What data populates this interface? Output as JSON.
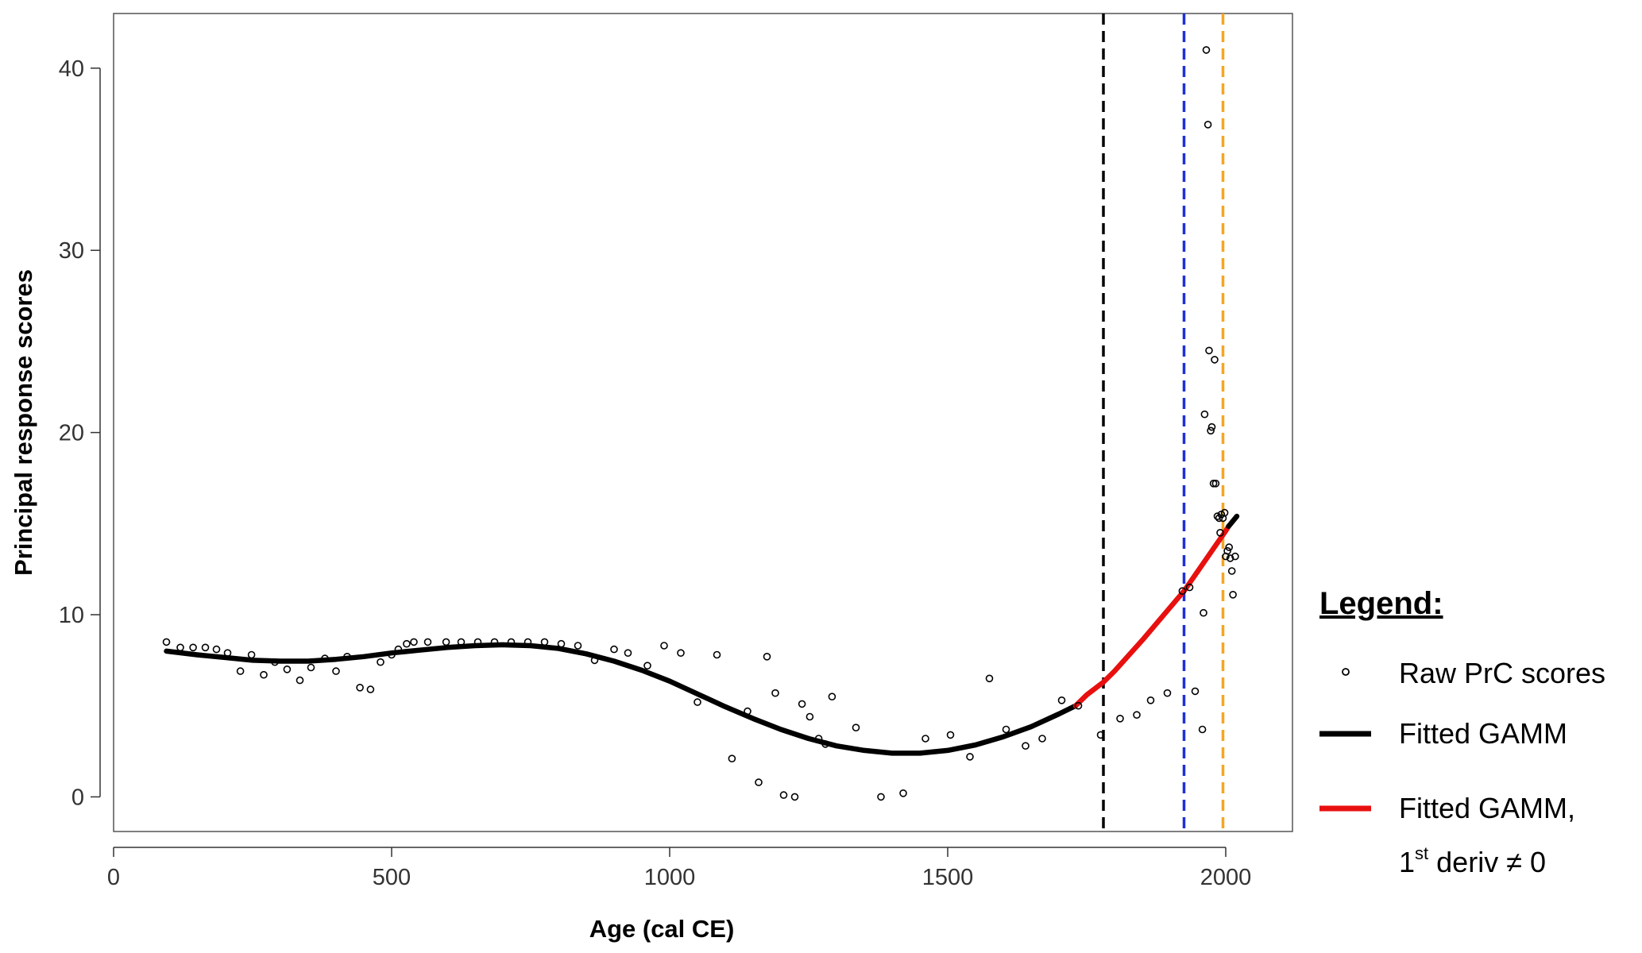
{
  "chart_data": {
    "type": "scatter",
    "xlabel": "Age (cal CE)",
    "ylabel": "Principal response scores",
    "xlim": [
      0,
      2120
    ],
    "ylim": [
      -1.9,
      43
    ],
    "x_ticks": [
      0,
      500,
      1000,
      1500,
      2000
    ],
    "y_ticks": [
      0,
      10,
      20,
      30,
      40
    ],
    "grid": false,
    "legend_position": "right",
    "legend": {
      "title": "Legend:",
      "entries": [
        {
          "label": "Raw PrC scores",
          "marker": "open-circle",
          "color": "#000000"
        },
        {
          "label": "Fitted GAMM",
          "marker": "line",
          "color": "#000000"
        },
        {
          "label": "Fitted GAMM,",
          "label_line2": "1",
          "label_line2_sup": "st",
          "label_line2_rest": " deriv ≠ 0",
          "marker": "line",
          "color": "#e8100f"
        }
      ]
    },
    "reference_lines": [
      {
        "x": 1780,
        "color": "#000000",
        "style": "dashed"
      },
      {
        "x": 1925,
        "color": "#1f2fd8",
        "style": "dashed"
      },
      {
        "x": 1995,
        "color": "#f5a623",
        "style": "dashed"
      }
    ],
    "series": [
      {
        "name": "Raw PrC scores",
        "type": "scatter",
        "points": [
          [
            95,
            8.5
          ],
          [
            120,
            8.2
          ],
          [
            143,
            8.2
          ],
          [
            165,
            8.2
          ],
          [
            185,
            8.1
          ],
          [
            205,
            7.9
          ],
          [
            228,
            6.9
          ],
          [
            248,
            7.8
          ],
          [
            270,
            6.7
          ],
          [
            290,
            7.4
          ],
          [
            312,
            7.0
          ],
          [
            335,
            6.4
          ],
          [
            355,
            7.1
          ],
          [
            380,
            7.6
          ],
          [
            400,
            6.9
          ],
          [
            420,
            7.7
          ],
          [
            443,
            6.0
          ],
          [
            462,
            5.9
          ],
          [
            480,
            7.4
          ],
          [
            500,
            7.8
          ],
          [
            512,
            8.1
          ],
          [
            527,
            8.4
          ],
          [
            540,
            8.5
          ],
          [
            565,
            8.5
          ],
          [
            598,
            8.5
          ],
          [
            625,
            8.5
          ],
          [
            655,
            8.5
          ],
          [
            685,
            8.5
          ],
          [
            715,
            8.5
          ],
          [
            745,
            8.5
          ],
          [
            775,
            8.5
          ],
          [
            805,
            8.4
          ],
          [
            835,
            8.3
          ],
          [
            865,
            7.5
          ],
          [
            900,
            8.1
          ],
          [
            925,
            7.9
          ],
          [
            960,
            7.2
          ],
          [
            990,
            8.3
          ],
          [
            1020,
            7.9
          ],
          [
            1050,
            5.2
          ],
          [
            1085,
            7.8
          ],
          [
            1112,
            2.1
          ],
          [
            1140,
            4.7
          ],
          [
            1160,
            0.8
          ],
          [
            1175,
            7.7
          ],
          [
            1190,
            5.7
          ],
          [
            1205,
            0.1
          ],
          [
            1225,
            0.0
          ],
          [
            1238,
            5.1
          ],
          [
            1252,
            4.4
          ],
          [
            1268,
            3.2
          ],
          [
            1280,
            2.9
          ],
          [
            1292,
            5.5
          ],
          [
            1335,
            3.8
          ],
          [
            1380,
            0.0
          ],
          [
            1420,
            0.2
          ],
          [
            1460,
            3.2
          ],
          [
            1505,
            3.4
          ],
          [
            1540,
            2.2
          ],
          [
            1575,
            6.5
          ],
          [
            1605,
            3.7
          ],
          [
            1640,
            2.8
          ],
          [
            1670,
            3.2
          ],
          [
            1705,
            5.3
          ],
          [
            1735,
            5.0
          ],
          [
            1775,
            3.4
          ],
          [
            1810,
            4.3
          ],
          [
            1840,
            4.5
          ],
          [
            1865,
            5.3
          ],
          [
            1895,
            5.7
          ],
          [
            1922,
            11.3
          ],
          [
            1935,
            11.5
          ],
          [
            1945,
            5.8
          ],
          [
            1958,
            3.7
          ],
          [
            1960,
            10.1
          ],
          [
            1962,
            21.0
          ],
          [
            1965,
            41.0
          ],
          [
            1968,
            36.9
          ],
          [
            1970,
            24.5
          ],
          [
            1973,
            20.1
          ],
          [
            1975,
            20.3
          ],
          [
            1978,
            17.2
          ],
          [
            1980,
            24.0
          ],
          [
            1982,
            17.2
          ],
          [
            1985,
            15.4
          ],
          [
            1988,
            15.3
          ],
          [
            1990,
            14.5
          ],
          [
            1992,
            15.5
          ],
          [
            1995,
            15.3
          ],
          [
            1998,
            15.6
          ],
          [
            2000,
            13.2
          ],
          [
            2003,
            13.5
          ],
          [
            2006,
            13.7
          ],
          [
            2008,
            13.1
          ],
          [
            2011,
            12.4
          ],
          [
            2013,
            11.1
          ],
          [
            2017,
            13.2
          ]
        ]
      },
      {
        "name": "Fitted GAMM",
        "type": "line",
        "color": "#000000",
        "points": [
          [
            95,
            8.0
          ],
          [
            150,
            7.8
          ],
          [
            200,
            7.65
          ],
          [
            250,
            7.5
          ],
          [
            300,
            7.45
          ],
          [
            350,
            7.45
          ],
          [
            400,
            7.55
          ],
          [
            450,
            7.7
          ],
          [
            500,
            7.9
          ],
          [
            550,
            8.05
          ],
          [
            600,
            8.2
          ],
          [
            650,
            8.3
          ],
          [
            700,
            8.35
          ],
          [
            750,
            8.3
          ],
          [
            800,
            8.15
          ],
          [
            850,
            7.85
          ],
          [
            900,
            7.45
          ],
          [
            950,
            6.95
          ],
          [
            1000,
            6.35
          ],
          [
            1050,
            5.65
          ],
          [
            1100,
            4.95
          ],
          [
            1150,
            4.3
          ],
          [
            1200,
            3.7
          ],
          [
            1250,
            3.2
          ],
          [
            1300,
            2.8
          ],
          [
            1350,
            2.55
          ],
          [
            1400,
            2.4
          ],
          [
            1450,
            2.4
          ],
          [
            1500,
            2.55
          ],
          [
            1550,
            2.85
          ],
          [
            1600,
            3.3
          ],
          [
            1650,
            3.85
          ],
          [
            1700,
            4.55
          ],
          [
            1730,
            5.0
          ]
        ]
      },
      {
        "name": "Fitted GAMM, 1st deriv ≠ 0",
        "type": "line",
        "color": "#e8100f",
        "points": [
          [
            1730,
            5.0
          ],
          [
            1750,
            5.6
          ],
          [
            1780,
            6.3
          ],
          [
            1800,
            6.9
          ],
          [
            1850,
            8.6
          ],
          [
            1900,
            10.4
          ],
          [
            1925,
            11.3
          ],
          [
            1950,
            12.4
          ],
          [
            1975,
            13.5
          ],
          [
            2000,
            14.6
          ],
          [
            2005,
            14.85
          ]
        ]
      },
      {
        "name": "Fitted GAMM tail",
        "type": "line",
        "color": "#000000",
        "points": [
          [
            2005,
            14.85
          ],
          [
            2020,
            15.4
          ]
        ]
      }
    ]
  }
}
